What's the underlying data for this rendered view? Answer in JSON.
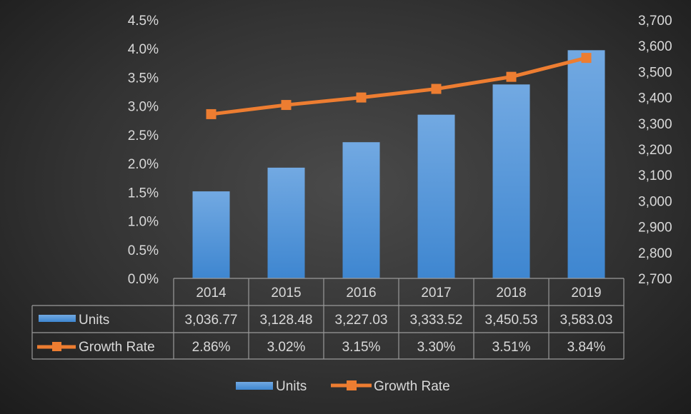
{
  "chart_data": {
    "type": "bar",
    "categories": [
      "2014",
      "2015",
      "2016",
      "2017",
      "2018",
      "2019"
    ],
    "series": [
      {
        "name": "Units",
        "type": "bar",
        "axis": "right",
        "values": [
          3036.77,
          3128.48,
          3227.03,
          3333.52,
          3450.53,
          3583.03
        ],
        "labels": [
          "3,036.77",
          "3,128.48",
          "3,227.03",
          "3,333.52",
          "3,450.53",
          "3,583.03"
        ],
        "color": "#4e93d8"
      },
      {
        "name": "Growth Rate",
        "type": "line",
        "axis": "left",
        "values": [
          2.86,
          3.02,
          3.15,
          3.3,
          3.51,
          3.84
        ],
        "labels": [
          "2.86%",
          "3.02%",
          "3.15%",
          "3.30%",
          "3.51%",
          "3.84%"
        ],
        "color": "#ed7d31"
      }
    ],
    "left_axis": {
      "ylim": [
        0,
        4.5
      ],
      "ticks": [
        "0.0%",
        "0.5%",
        "1.0%",
        "1.5%",
        "2.0%",
        "2.5%",
        "3.0%",
        "3.5%",
        "4.0%",
        "4.5%"
      ]
    },
    "right_axis": {
      "ylim": [
        2700,
        3700
      ],
      "ticks": [
        "2,700",
        "2,800",
        "2,900",
        "3,000",
        "3,100",
        "3,200",
        "3,300",
        "3,400",
        "3,500",
        "3,600",
        "3,700"
      ]
    },
    "data_table": true,
    "grid": false,
    "legend": {
      "position": "bottom",
      "entries": [
        "Units",
        "Growth Rate"
      ]
    }
  }
}
